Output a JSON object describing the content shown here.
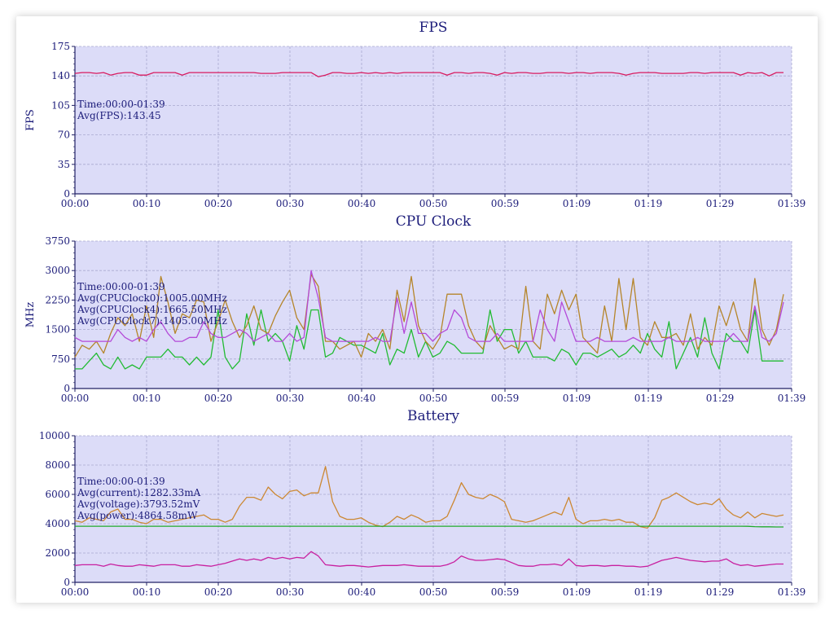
{
  "colors": {
    "plot_bg": "#dcdcf8",
    "grid": "#a9a9cf",
    "axis": "#222266",
    "text": "#1c1c7a"
  },
  "chart_data": [
    {
      "type": "line",
      "title": "FPS",
      "ylabel": "FPS",
      "ylim": [
        0,
        175
      ],
      "yticks": [
        0,
        35,
        70,
        105,
        140,
        175
      ],
      "xtick_labels": [
        "00:00",
        "00:10",
        "00:20",
        "00:30",
        "00:40",
        "00:50",
        "00:59",
        "01:09",
        "01:19",
        "01:29",
        "01:39"
      ],
      "grid": true,
      "annotations": [
        "Time:00:00-01:39",
        "Avg(FPS):143.45"
      ],
      "series": [
        {
          "color": "#d81b60",
          "values": [
            143,
            144,
            144,
            143,
            144,
            141,
            143,
            144,
            144,
            141,
            141,
            144,
            144,
            144,
            144,
            141,
            144,
            144,
            144,
            144,
            144,
            144,
            144,
            144,
            144,
            144,
            143,
            143,
            143,
            144,
            144,
            144,
            144,
            144,
            139,
            141,
            144,
            144,
            143,
            143,
            144,
            143,
            144,
            143,
            144,
            143,
            144,
            144,
            144,
            144,
            144,
            144,
            141,
            144,
            144,
            143,
            144,
            144,
            143,
            141,
            144,
            143,
            144,
            144,
            143,
            143,
            144,
            144,
            144,
            143,
            144,
            144,
            143,
            144,
            144,
            144,
            143,
            141,
            143,
            144,
            144,
            144,
            143,
            143,
            143,
            143,
            144,
            144,
            143,
            144,
            144,
            144,
            144,
            141,
            144,
            143,
            144,
            140,
            144,
            144
          ]
        }
      ]
    },
    {
      "type": "line",
      "title": "CPU Clock",
      "ylabel": "MHz",
      "ylim": [
        0,
        3750
      ],
      "yticks": [
        0,
        750,
        1500,
        2250,
        3000,
        3750
      ],
      "xtick_labels": [
        "00:00",
        "00:10",
        "00:20",
        "00:30",
        "00:40",
        "00:50",
        "00:59",
        "01:09",
        "01:19",
        "01:29",
        "01:39"
      ],
      "grid": true,
      "annotations": [
        "Time:00:00-01:39",
        "Avg(CPUClock0):1005.00MHz",
        "Avg(CPUClock4):1665.50MHz",
        "Avg(CPUClock7):1405.00MHz"
      ],
      "series": [
        {
          "color": "#22bb33",
          "values": [
            500,
            500,
            700,
            900,
            600,
            500,
            800,
            500,
            600,
            500,
            800,
            800,
            800,
            1000,
            800,
            800,
            600,
            800,
            600,
            800,
            2000,
            800,
            500,
            700,
            1900,
            1100,
            2000,
            1200,
            1400,
            1200,
            700,
            1600,
            1000,
            2000,
            2000,
            800,
            900,
            1300,
            1200,
            1100,
            1100,
            1000,
            900,
            1400,
            600,
            1000,
            900,
            1500,
            800,
            1200,
            800,
            900,
            1200,
            1100,
            900,
            900,
            900,
            900,
            2000,
            1200,
            1500,
            1500,
            900,
            1200,
            800,
            800,
            800,
            700,
            1000,
            900,
            600,
            900,
            900,
            800,
            900,
            1000,
            800,
            900,
            1100,
            900,
            1400,
            1000,
            800,
            1700,
            500,
            900,
            1300,
            800,
            1800,
            900,
            500,
            1400,
            1200,
            1200,
            900,
            2000,
            700,
            700,
            700,
            700
          ]
        },
        {
          "color": "#b5852a",
          "values": [
            800,
            1100,
            1000,
            1200,
            900,
            1400,
            1800,
            1600,
            1900,
            1200,
            2100,
            1300,
            2850,
            2200,
            1400,
            1900,
            1800,
            2250,
            2200,
            1200,
            1700,
            2250,
            1700,
            1300,
            1600,
            2100,
            1500,
            1400,
            1850,
            2200,
            2500,
            1800,
            1500,
            2900,
            2600,
            1200,
            1200,
            1000,
            1100,
            1200,
            800,
            1400,
            1200,
            1500,
            1000,
            2500,
            1700,
            2850,
            1600,
            1200,
            1000,
            1300,
            2400,
            2400,
            2400,
            1600,
            1200,
            1000,
            1600,
            1300,
            1000,
            1100,
            1000,
            2600,
            1200,
            1000,
            2400,
            1900,
            2500,
            2000,
            2400,
            1300,
            1100,
            900,
            2100,
            1200,
            2800,
            1500,
            2800,
            1300,
            1100,
            1700,
            1300,
            1300,
            1400,
            1100,
            1900,
            1000,
            1300,
            1100,
            2100,
            1600,
            2200,
            1500,
            1200,
            2800,
            1500,
            1100,
            1500,
            2400
          ]
        },
        {
          "color": "#b44ad8",
          "values": [
            1300,
            1200,
            1200,
            1200,
            1200,
            1200,
            1500,
            1300,
            1200,
            1300,
            1200,
            1500,
            1700,
            1400,
            1200,
            1200,
            1300,
            1300,
            1700,
            1400,
            1300,
            1300,
            1400,
            1500,
            1400,
            1200,
            1300,
            1400,
            1200,
            1200,
            1400,
            1200,
            1300,
            3000,
            2300,
            1300,
            1200,
            1200,
            1200,
            1200,
            1200,
            1200,
            1300,
            1200,
            1200,
            2300,
            1400,
            2200,
            1400,
            1400,
            1200,
            1400,
            1500,
            2000,
            1800,
            1300,
            1200,
            1200,
            1200,
            1400,
            1200,
            1200,
            1200,
            1200,
            1200,
            2000,
            1500,
            1200,
            2200,
            1700,
            1200,
            1200,
            1200,
            1300,
            1200,
            1200,
            1200,
            1200,
            1300,
            1200,
            1200,
            1200,
            1200,
            1300,
            1200,
            1200,
            1200,
            1300,
            1200,
            1200,
            1200,
            1200,
            1400,
            1200,
            1200,
            2100,
            1300,
            1200,
            1400,
            2200
          ]
        }
      ]
    },
    {
      "type": "line",
      "title": "Battery",
      "ylabel": "",
      "ylim": [
        0,
        10000
      ],
      "yticks": [
        0,
        2000,
        4000,
        6000,
        8000,
        10000
      ],
      "xtick_labels": [
        "00:00",
        "00:10",
        "00:20",
        "00:30",
        "00:40",
        "00:50",
        "00:59",
        "01:09",
        "01:19",
        "01:29",
        "01:39"
      ],
      "grid": true,
      "annotations": [
        "Time:00:00-01:39",
        "Avg(current):1282.33mA",
        "Avg(voltage):3793.52mV",
        "Avg(power):4864.58mW"
      ],
      "series": [
        {
          "color": "#cc8833",
          "values": [
            4200,
            4100,
            4400,
            4300,
            4200,
            4800,
            5000,
            4300,
            4300,
            4100,
            4000,
            4300,
            4300,
            4100,
            4200,
            4300,
            4400,
            4500,
            4600,
            4300,
            4300,
            4100,
            4300,
            5200,
            5800,
            5800,
            5600,
            6500,
            6000,
            5700,
            6200,
            6300,
            5900,
            6100,
            6100,
            7900,
            5500,
            4500,
            4300,
            4300,
            4400,
            4100,
            3900,
            3800,
            4100,
            4500,
            4300,
            4600,
            4400,
            4100,
            4200,
            4200,
            4500,
            5600,
            6800,
            6000,
            5800,
            5700,
            6000,
            5800,
            5500,
            4300,
            4200,
            4100,
            4200,
            4400,
            4600,
            4800,
            4600,
            5800,
            4300,
            4000,
            4200,
            4200,
            4300,
            4200,
            4300,
            4100,
            4100,
            3800,
            3700,
            4400,
            5600,
            5800,
            6100,
            5800,
            5500,
            5300,
            5400,
            5300,
            5700,
            5000,
            4600,
            4400,
            4800,
            4400,
            4700,
            4600,
            4500,
            4600
          ]
        },
        {
          "color": "#1faa2b",
          "values": [
            3830,
            3830,
            3830,
            3830,
            3830,
            3830,
            3830,
            3830,
            3830,
            3830,
            3830,
            3830,
            3830,
            3830,
            3830,
            3830,
            3830,
            3830,
            3830,
            3830,
            3830,
            3830,
            3830,
            3830,
            3830,
            3830,
            3830,
            3830,
            3830,
            3830,
            3830,
            3830,
            3830,
            3830,
            3830,
            3830,
            3830,
            3830,
            3830,
            3830,
            3830,
            3830,
            3830,
            3830,
            3830,
            3830,
            3830,
            3830,
            3830,
            3830,
            3830,
            3830,
            3830,
            3830,
            3830,
            3830,
            3830,
            3830,
            3830,
            3830,
            3830,
            3830,
            3830,
            3830,
            3830,
            3830,
            3830,
            3830,
            3830,
            3830,
            3830,
            3830,
            3830,
            3830,
            3830,
            3830,
            3830,
            3830,
            3830,
            3830,
            3830,
            3830,
            3830,
            3830,
            3830,
            3830,
            3830,
            3830,
            3830,
            3830,
            3830,
            3830,
            3830,
            3830,
            3820,
            3800,
            3790,
            3790,
            3780,
            3780
          ]
        },
        {
          "color": "#c820a0",
          "values": [
            1150,
            1200,
            1200,
            1200,
            1100,
            1250,
            1150,
            1100,
            1100,
            1200,
            1150,
            1100,
            1200,
            1200,
            1200,
            1100,
            1100,
            1200,
            1150,
            1100,
            1200,
            1300,
            1450,
            1600,
            1500,
            1600,
            1500,
            1700,
            1600,
            1700,
            1600,
            1700,
            1650,
            2100,
            1800,
            1200,
            1150,
            1100,
            1150,
            1150,
            1100,
            1050,
            1100,
            1150,
            1150,
            1150,
            1200,
            1150,
            1100,
            1100,
            1100,
            1100,
            1200,
            1400,
            1800,
            1600,
            1500,
            1500,
            1550,
            1600,
            1550,
            1350,
            1150,
            1100,
            1100,
            1200,
            1200,
            1250,
            1150,
            1600,
            1150,
            1100,
            1150,
            1150,
            1100,
            1150,
            1150,
            1100,
            1100,
            1050,
            1100,
            1300,
            1500,
            1600,
            1700,
            1600,
            1500,
            1450,
            1400,
            1450,
            1450,
            1600,
            1300,
            1150,
            1200,
            1100,
            1150,
            1200,
            1250,
            1250
          ]
        }
      ]
    }
  ]
}
